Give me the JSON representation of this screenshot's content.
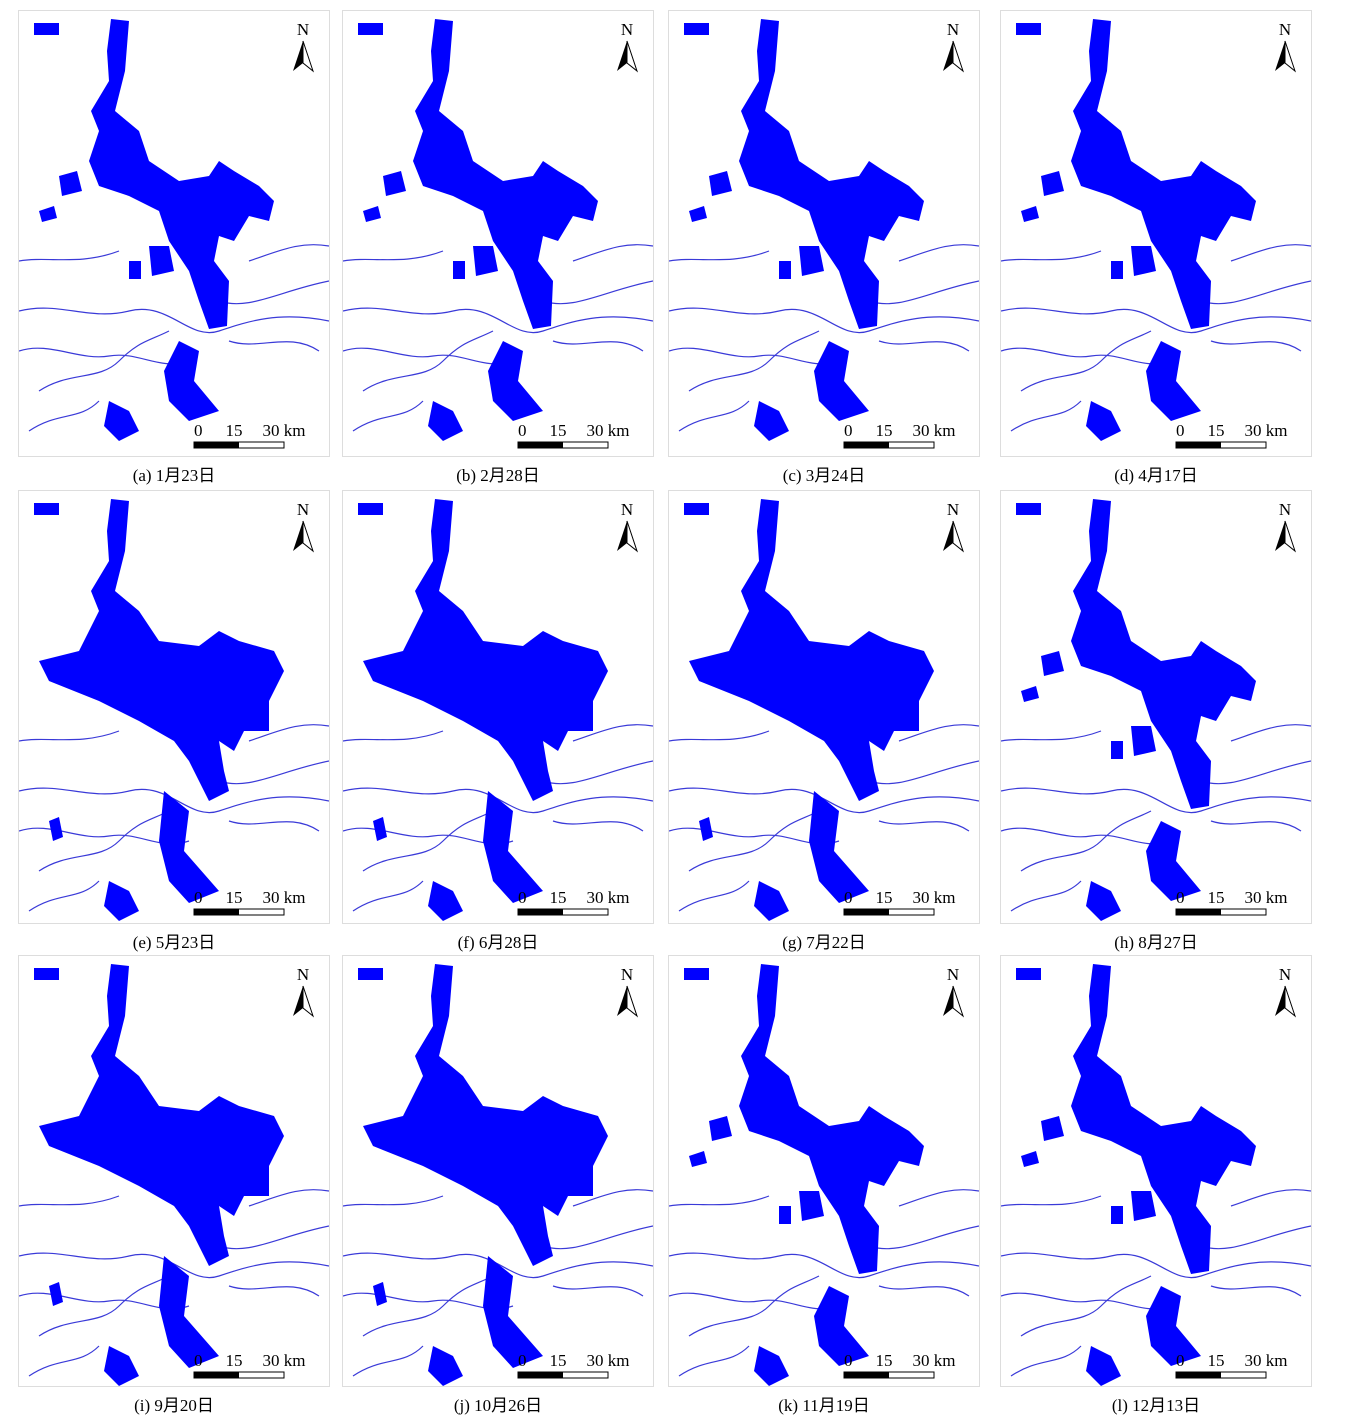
{
  "figure": {
    "north_label": "N",
    "scale_labels": [
      "0",
      "15",
      "30 km"
    ],
    "panels": [
      {
        "caption": "(a) 1月23日"
      },
      {
        "caption": "(b) 2月28日"
      },
      {
        "caption": "(c) 3月24日"
      },
      {
        "caption": "(d) 4月17日"
      },
      {
        "caption": "(e) 5月23日"
      },
      {
        "caption": "(f) 6月28日"
      },
      {
        "caption": "(g) 7月22日"
      },
      {
        "caption": "(h) 8月27日"
      },
      {
        "caption": "(i) 9月20日"
      },
      {
        "caption": "(j) 10月26日"
      },
      {
        "caption": "(k) 11月19日"
      },
      {
        "caption": "(l) 12月13日"
      }
    ]
  }
}
